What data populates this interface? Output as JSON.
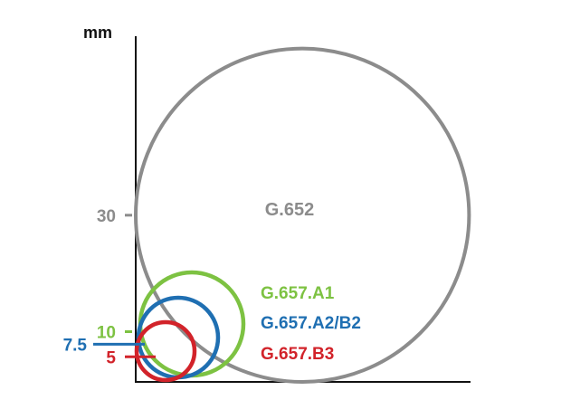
{
  "unit_label": "mm",
  "colors": {
    "axis": "#111111",
    "g652": "#8c8c8c",
    "g657_a1": "#7dc242",
    "g657_a2b2": "#1f6fb2",
    "g657_b3": "#d2232a"
  },
  "chart_data": {
    "type": "diagram",
    "y_unit": "mm",
    "ticks": [
      {
        "value": 30,
        "label": "30",
        "color_key": "g652"
      },
      {
        "value": 10,
        "label": "10",
        "color_key": "g657_a1"
      },
      {
        "value": 7.5,
        "label": "7.5",
        "color_key": "g657_a2b2"
      },
      {
        "value": 5,
        "label": "5",
        "color_key": "g657_b3"
      }
    ],
    "circles": [
      {
        "radius_mm": 30,
        "label": "G.652",
        "color_key": "g652"
      },
      {
        "radius_mm": 10,
        "label": "G.657.A1",
        "color_key": "g657_a1"
      },
      {
        "radius_mm": 7.5,
        "label": "G.657.A2/B2",
        "color_key": "g657_a2b2"
      },
      {
        "radius_mm": 5,
        "label": "G.657.B3",
        "color_key": "g657_b3"
      }
    ]
  }
}
